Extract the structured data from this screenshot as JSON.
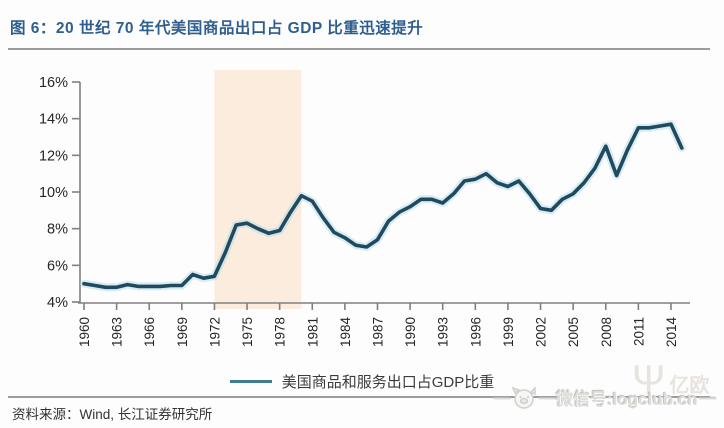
{
  "header": {
    "title": "图 6：20 世纪 70 年代美国商品出口占 GDP 比重迅速提升"
  },
  "chart_data": {
    "type": "line",
    "title": "20 世纪 70 年代美国商品出口占 GDP 比重迅速提升",
    "xlabel": "",
    "ylabel": "",
    "unit": "%",
    "ylim": [
      4,
      16
    ],
    "y_ticks": [
      4,
      6,
      8,
      10,
      12,
      14,
      16
    ],
    "y_tick_labels": [
      "4%",
      "6%",
      "8%",
      "10%",
      "12%",
      "14%",
      "16%"
    ],
    "x_range": [
      1960,
      2015
    ],
    "x_ticks": [
      1960,
      1963,
      1966,
      1969,
      1972,
      1975,
      1978,
      1981,
      1984,
      1987,
      1990,
      1993,
      1996,
      1999,
      2002,
      2005,
      2008,
      2011,
      2014
    ],
    "x_tick_labels": [
      "1960",
      "1963",
      "1966",
      "1969",
      "1972",
      "1975",
      "1978",
      "1981",
      "1984",
      "1987",
      "1990",
      "1993",
      "1996",
      "1999",
      "2002",
      "2005",
      "2008",
      "2011",
      "2014"
    ],
    "x_label_rotation": -90,
    "grid": false,
    "legend_position": "bottom",
    "line_color": "#1f4a60",
    "line_halo_color": "#aed6e4",
    "axis_color": "#808080",
    "highlight_band": {
      "from": 1972,
      "to": 1980,
      "color": "#fcecdd"
    },
    "series": [
      {
        "name": "美国商品和服务出口占GDP比重",
        "x": [
          1960,
          1961,
          1962,
          1963,
          1964,
          1965,
          1966,
          1967,
          1968,
          1969,
          1970,
          1971,
          1972,
          1973,
          1974,
          1975,
          1976,
          1977,
          1978,
          1979,
          1980,
          1981,
          1982,
          1983,
          1984,
          1985,
          1986,
          1987,
          1988,
          1989,
          1990,
          1991,
          1992,
          1993,
          1994,
          1995,
          1996,
          1997,
          1998,
          1999,
          2000,
          2001,
          2002,
          2003,
          2004,
          2005,
          2006,
          2007,
          2008,
          2009,
          2010,
          2011,
          2012,
          2013,
          2014,
          2015
        ],
        "values": [
          5.0,
          4.9,
          4.8,
          4.8,
          4.95,
          4.85,
          4.85,
          4.85,
          4.9,
          4.9,
          5.5,
          5.3,
          5.4,
          6.7,
          8.2,
          8.3,
          8.0,
          7.75,
          7.9,
          8.9,
          9.8,
          9.5,
          8.6,
          7.8,
          7.5,
          7.1,
          7.0,
          7.4,
          8.4,
          8.9,
          9.2,
          9.6,
          9.6,
          9.4,
          9.9,
          10.6,
          10.7,
          11.0,
          10.5,
          10.3,
          10.6,
          9.9,
          9.1,
          9.0,
          9.6,
          9.9,
          10.5,
          11.3,
          12.5,
          10.9,
          12.3,
          13.5,
          13.5,
          13.6,
          13.7,
          12.4
        ]
      }
    ]
  },
  "footer": {
    "source": "资料来源：Wind, 长江证券研究所"
  },
  "watermark": {
    "dash": "—",
    "text": "微信号:logclub.cn",
    "logo_text": "亿欧",
    "logo_symbol": "Ψ"
  },
  "colors": {
    "title": "#2d5e8e",
    "rule": "#9b9b9b",
    "legend_swatch": "#3f7d94",
    "watermark": "#dedcd9"
  }
}
